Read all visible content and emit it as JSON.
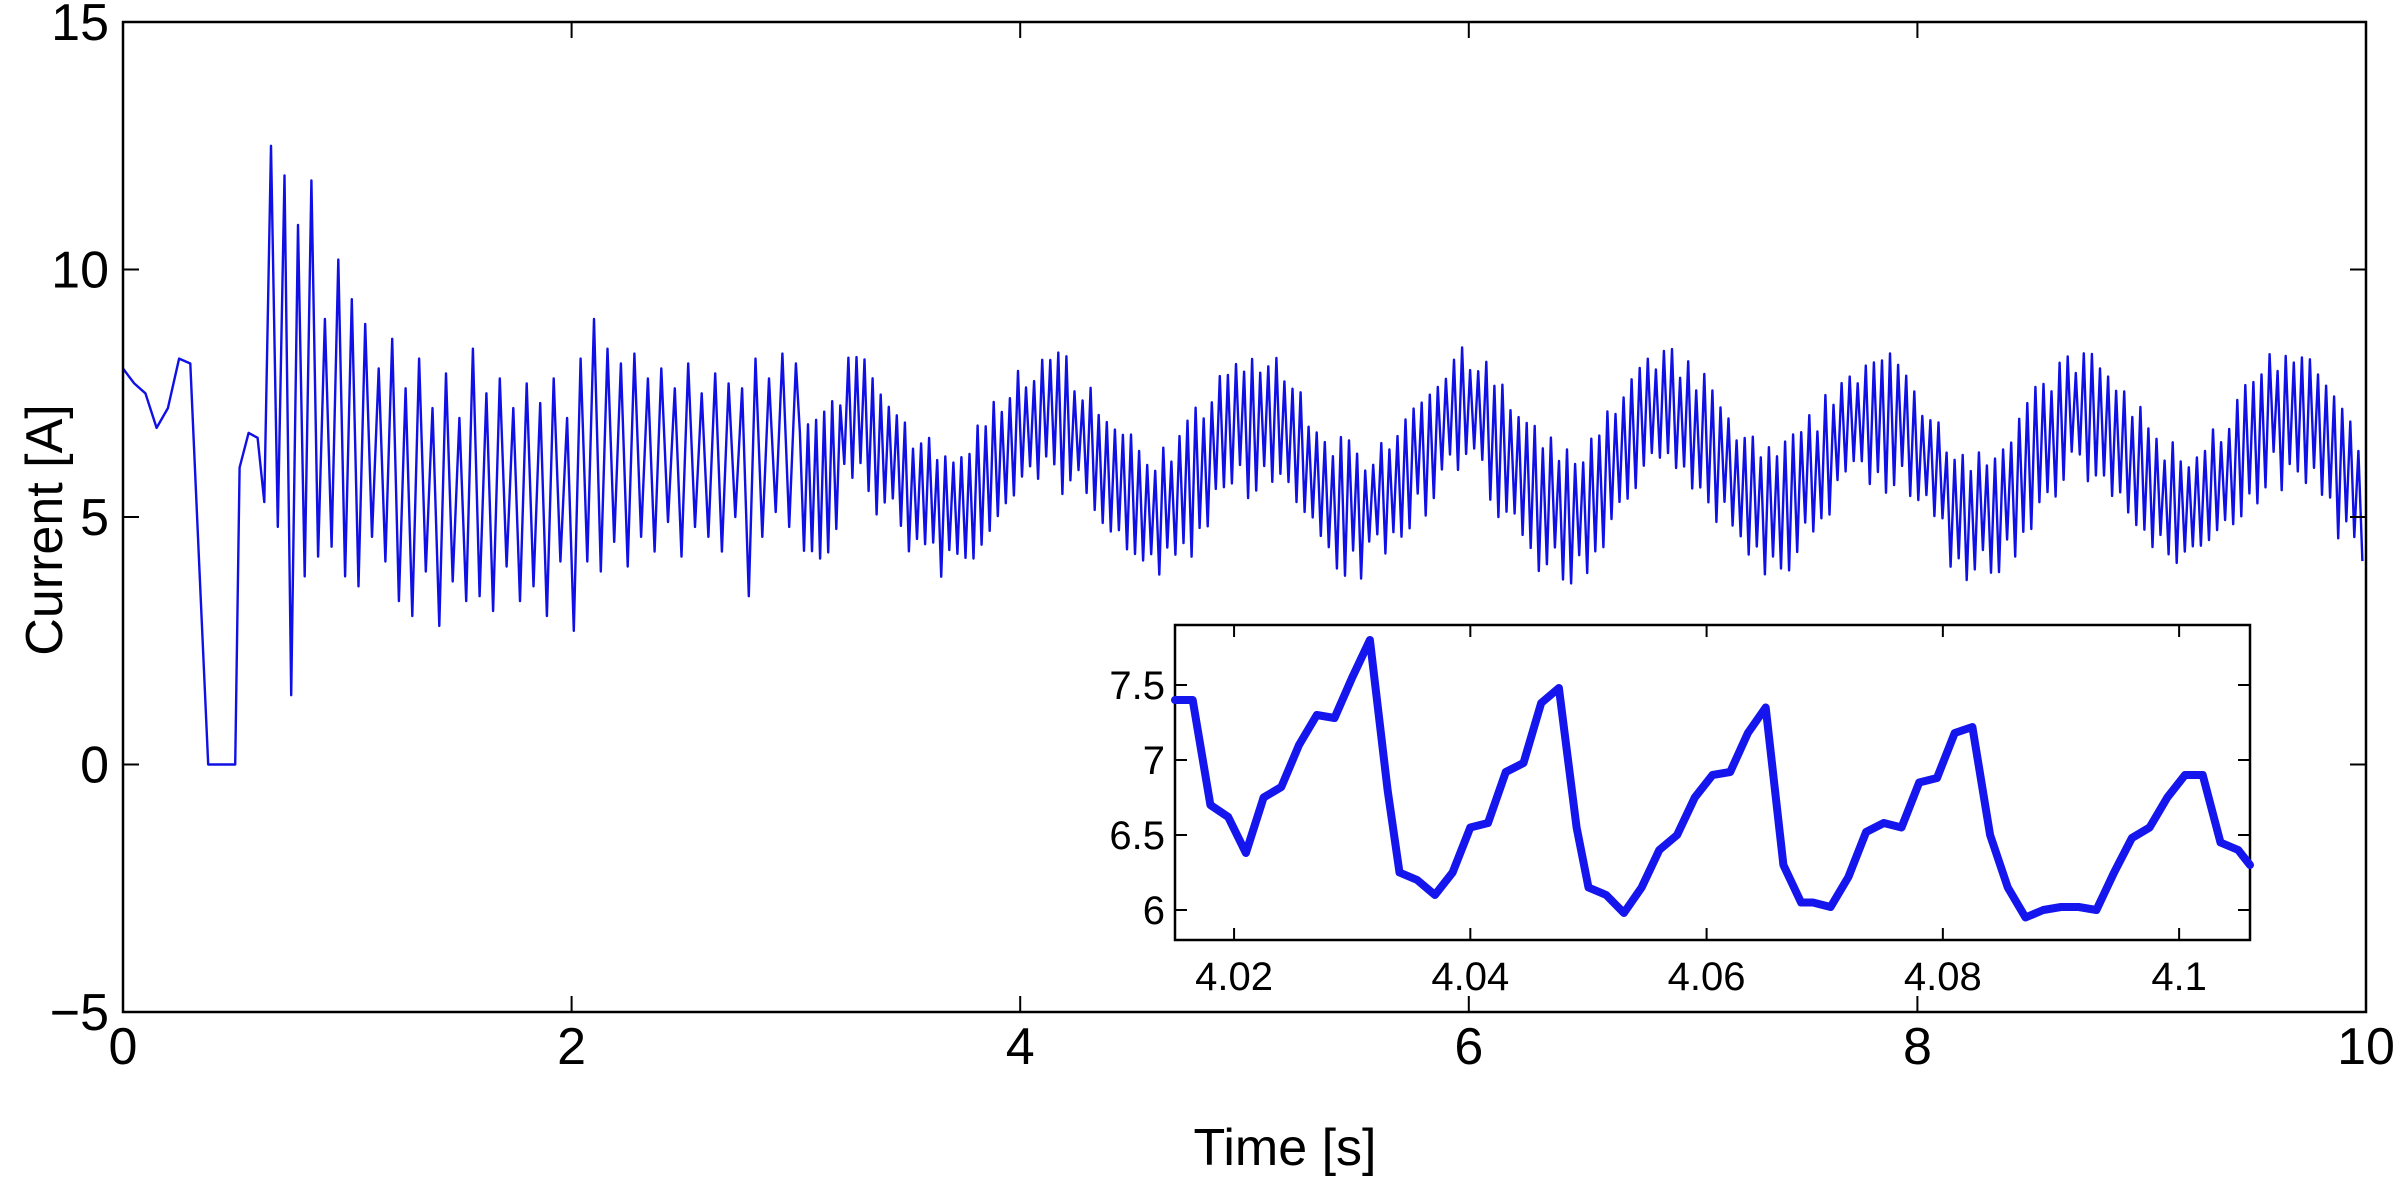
{
  "chart_data": [
    {
      "id": "main",
      "type": "line",
      "title": "",
      "xlabel": "Time [s]",
      "ylabel": "Current [A]",
      "xlim": [
        0,
        10
      ],
      "ylim": [
        -5,
        15
      ],
      "xticks": [
        0,
        2,
        4,
        6,
        8,
        10
      ],
      "xtick_labels": [
        "0",
        "2",
        "4",
        "6",
        "8",
        "10"
      ],
      "yticks": [
        -5,
        0,
        5,
        10,
        15
      ],
      "ytick_labels": [
        "−5",
        "0",
        "5",
        "10",
        "15"
      ],
      "grid": false,
      "series": [
        {
          "name": "current",
          "color": "#1010e6",
          "description": "startup transient then ~6 A mean with +/-1.5 A ripple and ~0.9 s slow oscillation",
          "x": [
            0.0,
            0.05,
            0.1,
            0.15,
            0.2,
            0.25,
            0.3,
            0.34,
            0.38,
            0.5,
            0.52,
            0.56,
            0.6,
            0.63,
            0.66,
            0.69,
            0.72,
            0.75,
            0.78,
            0.81,
            0.84,
            0.87,
            0.9,
            0.93,
            0.96,
            0.99,
            1.02,
            1.05,
            1.08,
            1.11,
            1.14,
            1.17,
            1.2,
            1.23,
            1.26,
            1.29,
            1.32,
            1.35,
            1.38,
            1.41,
            1.44,
            1.47,
            1.5,
            1.53,
            1.56,
            1.59,
            1.62,
            1.65,
            1.68,
            1.71,
            1.74,
            1.77,
            1.8,
            1.83,
            1.86,
            1.89,
            1.92,
            1.95,
            1.98,
            2.01,
            2.04,
            2.07,
            2.1,
            2.13,
            2.16,
            2.19,
            2.22,
            2.25,
            2.28,
            2.31,
            2.34,
            2.37,
            2.4,
            2.43,
            2.46,
            2.49,
            2.52,
            2.55,
            2.58,
            2.61,
            2.64,
            2.67,
            2.7,
            2.73,
            2.76,
            2.79,
            2.82,
            2.85,
            2.88,
            2.91,
            2.94,
            2.97,
            3.0
          ],
          "y": [
            8.0,
            7.7,
            7.5,
            6.8,
            7.2,
            8.2,
            8.1,
            4.0,
            0.0,
            0.0,
            6.0,
            6.7,
            6.6,
            5.3,
            12.5,
            4.8,
            11.9,
            1.4,
            10.9,
            3.8,
            11.8,
            4.2,
            9.0,
            4.4,
            10.2,
            3.8,
            9.4,
            3.6,
            8.9,
            4.6,
            8.0,
            4.1,
            8.6,
            3.3,
            7.6,
            3.0,
            8.2,
            3.9,
            7.2,
            2.8,
            7.9,
            3.7,
            7.0,
            3.3,
            8.4,
            3.4,
            7.5,
            3.1,
            7.8,
            4.0,
            7.2,
            3.3,
            7.7,
            3.6,
            7.3,
            3.0,
            7.8,
            4.1,
            7.0,
            2.7,
            8.2,
            4.1,
            9.0,
            3.9,
            8.4,
            4.5,
            8.1,
            4.0,
            8.3,
            4.6,
            7.8,
            4.3,
            8.0,
            4.9,
            7.6,
            4.2,
            8.1,
            4.8,
            7.5,
            4.6,
            7.9,
            4.3,
            7.7,
            5.0,
            7.6,
            3.4,
            8.2,
            4.6,
            7.8,
            5.1,
            8.3,
            4.8,
            8.1
          ]
        }
      ],
      "inset": {
        "type": "line",
        "xlim": [
          4.015,
          4.106
        ],
        "ylim": [
          5.8,
          7.9
        ],
        "xticks": [
          4.02,
          4.04,
          4.06,
          4.08,
          4.1
        ],
        "xtick_labels": [
          "4.02",
          "4.04",
          "4.06",
          "4.08",
          "4.1"
        ],
        "yticks": [
          6,
          6.5,
          7,
          7.5
        ],
        "ytick_labels": [
          "6",
          "6.5",
          "7",
          "7.5"
        ],
        "color": "#1515ee",
        "x": [
          4.015,
          4.0165,
          4.018,
          4.0195,
          4.021,
          4.0225,
          4.024,
          4.0255,
          4.027,
          4.0285,
          4.03,
          4.0315,
          4.033,
          4.034,
          4.0355,
          4.037,
          4.0385,
          4.04,
          4.0415,
          4.043,
          4.0445,
          4.046,
          4.0475,
          4.049,
          4.05,
          4.0515,
          4.053,
          4.0545,
          4.056,
          4.0575,
          4.059,
          4.0605,
          4.062,
          4.0635,
          4.065,
          4.0665,
          4.068,
          4.069,
          4.0705,
          4.072,
          4.0735,
          4.075,
          4.0765,
          4.078,
          4.0795,
          4.081,
          4.0825,
          4.084,
          4.0855,
          4.087,
          4.0885,
          4.09,
          4.0915,
          4.093,
          4.0945,
          4.096,
          4.0975,
          4.099,
          4.1005,
          4.102,
          4.1035,
          4.105,
          4.106
        ],
        "y": [
          7.4,
          7.4,
          6.7,
          6.62,
          6.38,
          6.75,
          6.82,
          7.1,
          7.3,
          7.28,
          7.55,
          7.8,
          6.8,
          6.25,
          6.2,
          6.1,
          6.25,
          6.55,
          6.58,
          6.92,
          6.98,
          7.38,
          7.48,
          6.55,
          6.15,
          6.1,
          5.98,
          6.15,
          6.4,
          6.5,
          6.75,
          6.9,
          6.92,
          7.18,
          7.35,
          6.3,
          6.05,
          6.05,
          6.02,
          6.22,
          6.52,
          6.58,
          6.55,
          6.85,
          6.88,
          7.18,
          7.22,
          6.5,
          6.15,
          5.95,
          6.0,
          6.02,
          6.02,
          6.0,
          6.25,
          6.48,
          6.55,
          6.75,
          6.9,
          6.9,
          6.45,
          6.4,
          6.3
        ]
      }
    }
  ]
}
